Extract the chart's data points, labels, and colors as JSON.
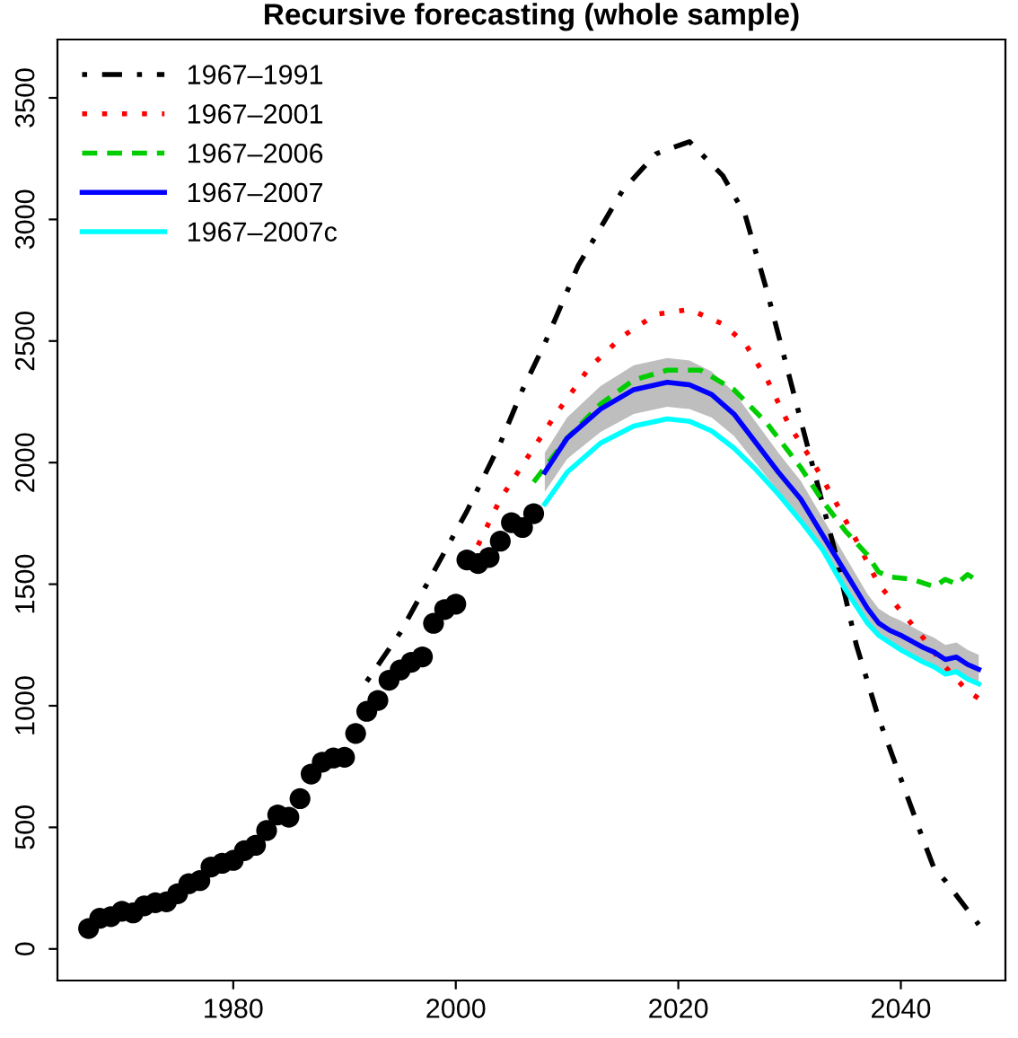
{
  "chart_data": {
    "type": "line",
    "title": "Recursive forecasting (whole sample)",
    "xlim": [
      1964.2,
      2049.4
    ],
    "ylim": [
      -130,
      3740
    ],
    "xticks": [
      1980,
      2000,
      2020,
      2040
    ],
    "yticks": [
      0,
      500,
      1000,
      1500,
      2000,
      2500,
      3000,
      3500
    ],
    "grid": false,
    "legend": "top left",
    "series": [
      {
        "type": "scatter",
        "marker": "circle",
        "color": "#000000",
        "x": [
          1967,
          1968,
          1969,
          1970,
          1971,
          1972,
          1973,
          1974,
          1975,
          1976,
          1977,
          1978,
          1979,
          1980,
          1981,
          1982,
          1983,
          1984,
          1985,
          1986,
          1987,
          1988,
          1989,
          1990,
          1991,
          1992,
          1993,
          1994,
          1995,
          1996,
          1997,
          1998,
          1999,
          2000,
          2001,
          2002,
          2003,
          2004,
          2005,
          2006,
          2007
        ],
        "values": [
          84,
          126,
          133,
          155,
          148,
          177,
          190,
          194,
          227,
          268,
          281,
          337,
          352,
          364,
          404,
          426,
          487,
          551,
          542,
          618,
          719,
          768,
          785,
          788,
          886,
          977,
          1022,
          1105,
          1147,
          1179,
          1201,
          1339,
          1396,
          1418,
          1600,
          1585,
          1610,
          1677,
          1753,
          1733,
          1790
        ]
      },
      {
        "name": "1967–1991",
        "line_style": "dashdot",
        "color": "#000000",
        "x": [
          1992,
          1995,
          1998,
          2001,
          2004,
          2006,
          2008,
          2011,
          2015,
          2018,
          2021,
          2024,
          2026,
          2028,
          2030,
          2032,
          2034,
          2036,
          2038,
          2040,
          2042,
          2043,
          2044,
          2045,
          2047
        ],
        "values": [
          1100,
          1300,
          1550,
          1800,
          2080,
          2300,
          2490,
          2810,
          3120,
          3270,
          3320,
          3180,
          3020,
          2700,
          2350,
          2000,
          1650,
          1250,
          950,
          700,
          450,
          330,
          280,
          220,
          100
        ]
      },
      {
        "name": "1967–2001",
        "line_style": "dotted",
        "color": "#ff0000",
        "x": [
          2002,
          2004,
          2006,
          2009,
          2012,
          2015,
          2018,
          2021,
          2024,
          2026,
          2028,
          2030,
          2032,
          2034,
          2036,
          2038,
          2040,
          2042,
          2044,
          2045,
          2046,
          2047
        ],
        "values": [
          1660,
          1850,
          1990,
          2200,
          2390,
          2520,
          2610,
          2630,
          2570,
          2490,
          2340,
          2150,
          2010,
          1850,
          1680,
          1500,
          1390,
          1280,
          1160,
          1110,
          1060,
          1030
        ]
      },
      {
        "name": "1967–2006",
        "line_style": "dashed",
        "color": "#00cd00",
        "x": [
          2007,
          2010,
          2013,
          2016,
          2019,
          2022,
          2025,
          2028,
          2031,
          2033,
          2035,
          2037,
          2038,
          2039,
          2041,
          2043,
          2044,
          2045,
          2046,
          2047
        ],
        "values": [
          1920,
          2100,
          2240,
          2340,
          2380,
          2380,
          2300,
          2160,
          1980,
          1840,
          1720,
          1620,
          1550,
          1530,
          1520,
          1490,
          1520,
          1500,
          1540,
          1510
        ]
      },
      {
        "name": "1967–2007",
        "line_style": "solid",
        "color": "#0000ff",
        "x": [
          2008,
          2010,
          2013,
          2016,
          2019,
          2021,
          2023,
          2025,
          2027,
          2029,
          2031,
          2033,
          2035,
          2037,
          2038,
          2039,
          2040,
          2042,
          2043,
          2044,
          2045,
          2046,
          2047
        ],
        "values": [
          1960,
          2100,
          2220,
          2300,
          2330,
          2320,
          2280,
          2200,
          2080,
          1960,
          1850,
          1700,
          1550,
          1400,
          1340,
          1310,
          1290,
          1240,
          1220,
          1190,
          1200,
          1170,
          1150
        ],
        "lower": [
          1880,
          2015,
          2125,
          2200,
          2230,
          2220,
          2185,
          2110,
          1995,
          1880,
          1775,
          1630,
          1485,
          1340,
          1280,
          1250,
          1230,
          1180,
          1160,
          1130,
          1140,
          1110,
          1090
        ],
        "upper": [
          2040,
          2185,
          2315,
          2400,
          2430,
          2420,
          2375,
          2290,
          2165,
          2040,
          1925,
          1770,
          1615,
          1460,
          1400,
          1370,
          1350,
          1300,
          1280,
          1250,
          1260,
          1230,
          1210
        ]
      },
      {
        "name": "1967–2007c",
        "line_style": "solid",
        "color": "#00ffff",
        "x": [
          2008,
          2010,
          2013,
          2016,
          2019,
          2021,
          2023,
          2025,
          2027,
          2029,
          2031,
          2033,
          2035,
          2037,
          2038,
          2039,
          2040,
          2042,
          2043,
          2044,
          2045,
          2046,
          2047
        ],
        "values": [
          1830,
          1960,
          2080,
          2150,
          2180,
          2170,
          2130,
          2060,
          1970,
          1870,
          1760,
          1640,
          1480,
          1340,
          1290,
          1260,
          1230,
          1180,
          1160,
          1130,
          1140,
          1110,
          1090
        ]
      }
    ]
  }
}
